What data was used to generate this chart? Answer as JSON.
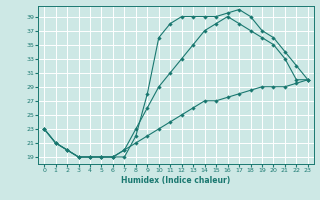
{
  "xlabel": "Humidex (Indice chaleur)",
  "bg_color": "#cde8e5",
  "grid_color": "#ffffff",
  "line_color": "#1a7870",
  "xlim": [
    -0.5,
    23.5
  ],
  "ylim": [
    18.0,
    40.5
  ],
  "xticks": [
    0,
    1,
    2,
    3,
    4,
    5,
    6,
    7,
    8,
    9,
    10,
    11,
    12,
    13,
    14,
    15,
    16,
    17,
    18,
    19,
    20,
    21,
    22,
    23
  ],
  "yticks": [
    19,
    21,
    23,
    25,
    27,
    29,
    31,
    33,
    35,
    37,
    39
  ],
  "curve1_x": [
    0,
    1,
    2,
    3,
    4,
    5,
    6,
    7,
    8,
    9,
    10,
    11,
    12,
    13,
    14,
    15,
    16,
    17,
    18,
    19,
    20,
    21,
    22,
    23
  ],
  "curve1_y": [
    23,
    21,
    20,
    19,
    19,
    19,
    19,
    19,
    22,
    28,
    36,
    38,
    39,
    39,
    39,
    39,
    39.5,
    40,
    39,
    37,
    36,
    34,
    32,
    30
  ],
  "curve2_x": [
    0,
    1,
    2,
    3,
    4,
    5,
    6,
    7,
    8,
    9,
    10,
    11,
    12,
    13,
    14,
    15,
    16,
    17,
    18,
    19,
    20,
    21,
    22,
    23
  ],
  "curve2_y": [
    23,
    21,
    20,
    19,
    19,
    19,
    19,
    20,
    23,
    26,
    29,
    31,
    33,
    35,
    37,
    38,
    39,
    38,
    37,
    36,
    35,
    33,
    30,
    30
  ],
  "curve3_x": [
    0,
    1,
    2,
    3,
    4,
    5,
    6,
    7,
    8,
    9,
    10,
    11,
    12,
    13,
    14,
    15,
    16,
    17,
    18,
    19,
    20,
    21,
    22,
    23
  ],
  "curve3_y": [
    23,
    21,
    20,
    19,
    19,
    19,
    19,
    20,
    21,
    22,
    23,
    24,
    25,
    26,
    27,
    27,
    27.5,
    28,
    28.5,
    29,
    29,
    29,
    29.5,
    30
  ]
}
